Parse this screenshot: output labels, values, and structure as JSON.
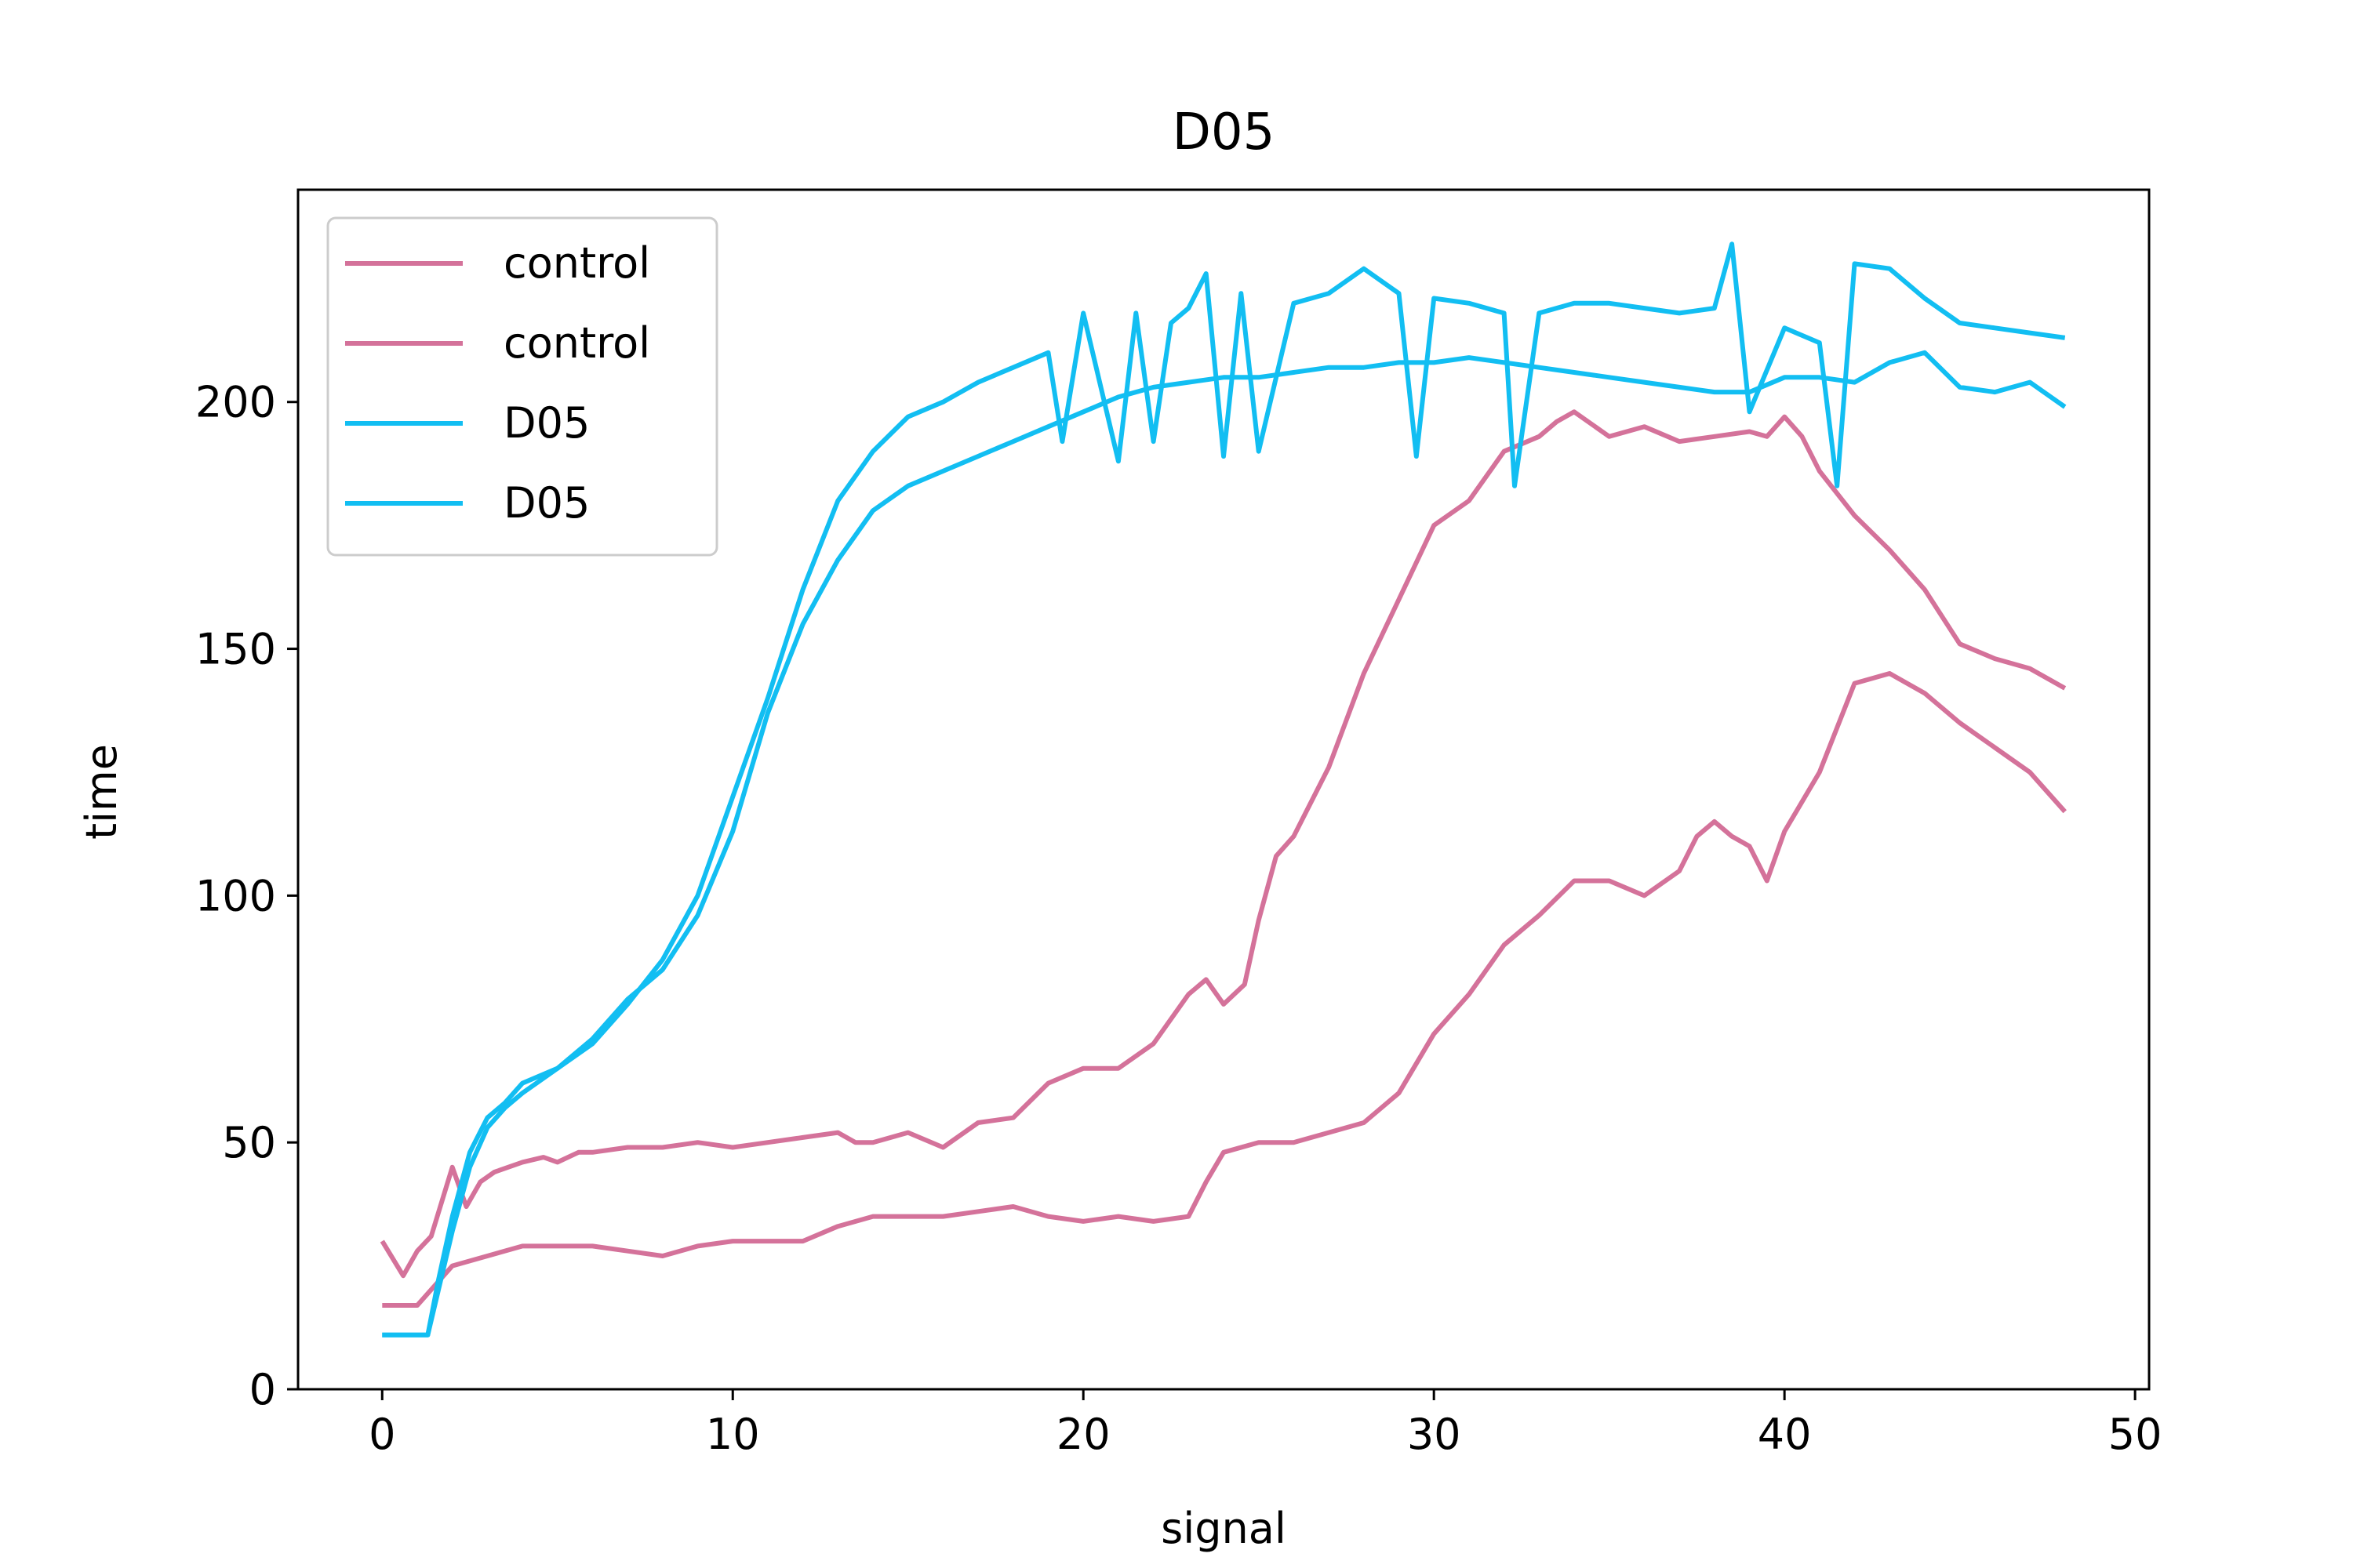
{
  "chart_data": {
    "type": "line",
    "title": "D05",
    "xlabel": "signal",
    "ylabel": "time",
    "xlim": [
      -2.4,
      50.4
    ],
    "ylim": [
      0,
      243
    ],
    "xticks": [
      0,
      10,
      20,
      30,
      40,
      50
    ],
    "yticks": [
      0,
      50,
      100,
      150,
      200
    ],
    "grid": false,
    "legend": {
      "position": "top-left",
      "entries": [
        "control",
        "control",
        "D05",
        "D05"
      ]
    },
    "colors": {
      "control": "#d4729a",
      "D05": "#12bef2"
    },
    "series": [
      {
        "name": "control",
        "color": "#d4729a",
        "x": [
          0,
          0.6,
          1,
          1.4,
          2,
          2.4,
          2.8,
          3.2,
          4,
          4.6,
          5,
          5.6,
          6,
          7,
          8,
          9,
          10,
          11,
          12,
          13,
          13.5,
          14,
          15,
          16,
          17,
          18,
          19,
          20,
          21,
          22,
          23,
          23.5,
          24,
          24.6,
          25,
          25.5,
          26,
          27,
          28,
          29,
          30,
          31,
          32,
          33,
          33.5,
          34,
          35,
          36,
          37,
          38,
          39,
          39.5,
          40,
          40.5,
          41,
          42,
          43,
          44,
          45,
          46,
          47,
          48
        ],
        "y": [
          30,
          23,
          28,
          31,
          45,
          37,
          42,
          44,
          46,
          47,
          46,
          48,
          48,
          49,
          49,
          50,
          49,
          50,
          51,
          52,
          50,
          50,
          52,
          49,
          54,
          55,
          62,
          65,
          65,
          70,
          80,
          83,
          78,
          82,
          95,
          108,
          112,
          126,
          145,
          160,
          175,
          180,
          190,
          193,
          196,
          198,
          193,
          195,
          192,
          193,
          194,
          193,
          197,
          193,
          186,
          177,
          170,
          162,
          151,
          148,
          146,
          142
        ]
      },
      {
        "name": "control",
        "color": "#d4729a",
        "x": [
          0,
          1,
          2,
          3,
          4,
          5,
          6,
          7,
          8,
          9,
          10,
          11,
          12,
          13,
          14,
          15,
          16,
          17,
          18,
          19,
          20,
          21,
          22,
          23,
          23.5,
          24,
          25,
          26,
          27,
          28,
          29,
          30,
          31,
          32,
          33,
          34,
          35,
          36,
          37,
          37.5,
          38,
          38.5,
          39,
          39.5,
          40,
          41,
          42,
          43,
          44,
          45,
          46,
          47,
          48
        ],
        "y": [
          17,
          17,
          25,
          27,
          29,
          29,
          29,
          28,
          27,
          29,
          30,
          30,
          30,
          33,
          35,
          35,
          35,
          36,
          37,
          35,
          34,
          35,
          34,
          35,
          42,
          48,
          50,
          50,
          52,
          54,
          60,
          72,
          80,
          90,
          96,
          103,
          103,
          100,
          105,
          112,
          115,
          112,
          110,
          103,
          113,
          125,
          143,
          145,
          141,
          135,
          130,
          125,
          117
        ]
      },
      {
        "name": "D05",
        "color": "#12bef2",
        "x": [
          0,
          0.5,
          1,
          1.3,
          1.6,
          2,
          2.5,
          3,
          3.5,
          4,
          5,
          6,
          7,
          8,
          9,
          10,
          11,
          12,
          13,
          14,
          15,
          16,
          17,
          18,
          19,
          19.4,
          20,
          21,
          21.5,
          22,
          22.5,
          23,
          23.5,
          24,
          24.5,
          25,
          26,
          27,
          28,
          29,
          29.5,
          30,
          31,
          32,
          32.3,
          33,
          34,
          35,
          36,
          37,
          38,
          38.5,
          39,
          40,
          41,
          41.5,
          42,
          43,
          44,
          45,
          46,
          47,
          48
        ],
        "y": [
          11,
          11,
          11,
          11,
          20,
          32,
          45,
          53,
          57,
          60,
          65,
          70,
          78,
          87,
          100,
          120,
          140,
          162,
          180,
          190,
          197,
          200,
          204,
          207,
          210,
          192,
          218,
          188,
          218,
          192,
          216,
          219,
          226,
          189,
          222,
          190,
          220,
          222,
          227,
          222,
          189,
          221,
          220,
          218,
          183,
          218,
          220,
          220,
          219,
          218,
          219,
          232,
          198,
          215,
          212,
          183,
          228,
          227,
          221,
          216,
          215,
          214,
          213
        ]
      },
      {
        "name": "D05",
        "color": "#12bef2",
        "x": [
          0,
          0.5,
          1,
          1.3,
          1.6,
          2,
          2.5,
          3,
          3.5,
          4,
          5,
          6,
          7,
          8,
          9,
          10,
          11,
          12,
          13,
          14,
          15,
          16,
          17,
          18,
          19,
          20,
          21,
          22,
          23,
          24,
          25,
          26,
          27,
          28,
          29,
          30,
          31,
          32,
          33,
          34,
          35,
          36,
          37,
          38,
          39,
          40,
          41,
          42,
          43,
          44,
          45,
          46,
          47,
          48
        ],
        "y": [
          11,
          11,
          11,
          11,
          22,
          35,
          48,
          55,
          58,
          62,
          65,
          71,
          79,
          85,
          96,
          113,
          137,
          155,
          168,
          178,
          183,
          186,
          189,
          192,
          195,
          198,
          201,
          203,
          204,
          205,
          205,
          206,
          207,
          207,
          208,
          208,
          209,
          208,
          207,
          206,
          205,
          204,
          203,
          202,
          202,
          205,
          205,
          204,
          208,
          210,
          203,
          202,
          204,
          199
        ]
      }
    ]
  }
}
